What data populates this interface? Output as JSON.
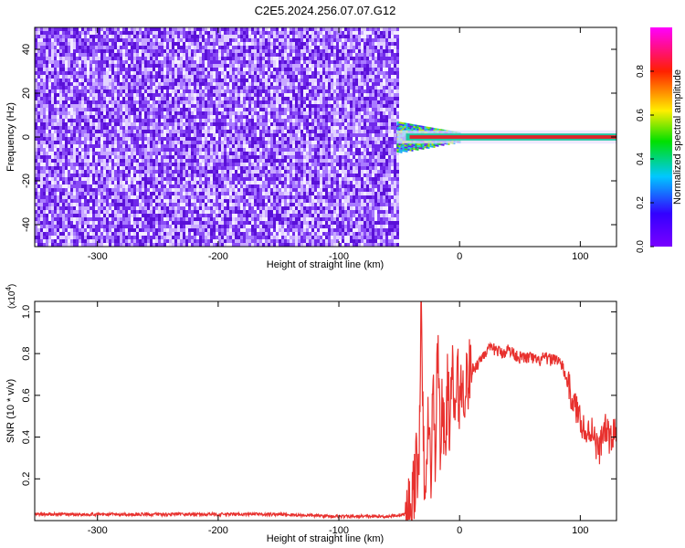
{
  "title": "C2E5.2024.256.07.07.G12",
  "colors": {
    "spectrogram_noise": "#6a1be8",
    "spectrogram_band": "#e0242a",
    "snr_line": "#e8312e",
    "axes": "#000000"
  },
  "chart_data": [
    {
      "type": "heatmap",
      "title": "C2E5.2024.256.07.07.G12",
      "xlabel": "Height of straight line (km)",
      "ylabel": "Frequency (Hz)",
      "xlim": [
        -352,
        130
      ],
      "ylim": [
        -50,
        50
      ],
      "xticks": [
        -300,
        -200,
        -100,
        0,
        100
      ],
      "yticks": [
        -40,
        -20,
        0,
        20,
        40
      ],
      "colorbar": {
        "label": "Normalized spectral amplitude",
        "range": [
          0,
          1
        ],
        "ticks": [
          "0.0",
          "0.2",
          "0.4",
          "0.6",
          "0.8"
        ],
        "colormap": "violet-blue-cyan-green-yellow-red-magenta"
      },
      "regions": [
        {
          "name": "noise",
          "x_range": [
            -352,
            -52
          ],
          "freq_range": [
            -50,
            50
          ],
          "amplitude": 0.1
        },
        {
          "name": "onset",
          "x_range": [
            -52,
            0
          ],
          "freq_range": [
            -6,
            6
          ],
          "amplitude": 0.6
        },
        {
          "name": "carrier",
          "x_range": [
            0,
            130
          ],
          "freq_range": [
            -1,
            1
          ],
          "amplitude": 1.0
        }
      ]
    },
    {
      "type": "line",
      "xlabel": "Height of straight line (km)",
      "ylabel": "SNR (10 * v/v)",
      "y_multiplier": "(x10^4)",
      "y_multiplier_base": "(x10",
      "y_multiplier_exp": "4",
      "y_multiplier_close": ")",
      "xlim": [
        -352,
        130
      ],
      "ylim": [
        0,
        1.05
      ],
      "xticks": [
        -300,
        -200,
        -100,
        0,
        100
      ],
      "yticks": [
        0.2,
        0.4,
        0.6,
        0.8,
        1.0
      ],
      "yticklabels": [
        "0.2",
        "0.4",
        "0.6",
        "0.8",
        "1.0"
      ],
      "series": [
        {
          "x": [
            -352,
            -300,
            -250,
            -200,
            -150,
            -100,
            -60,
            -45,
            -40,
            -36,
            -34,
            -32,
            -30,
            -28,
            -26,
            -24,
            -22,
            -20,
            -18,
            -16,
            -14,
            -12,
            -10,
            -8,
            -6,
            -4,
            -2,
            0,
            5,
            10,
            15,
            20,
            25,
            30,
            35,
            40,
            45,
            50,
            55,
            60,
            65,
            70,
            75,
            80,
            85,
            90,
            95,
            100,
            105,
            110,
            115,
            120,
            125,
            130
          ],
          "y": [
            0.03,
            0.03,
            0.03,
            0.03,
            0.03,
            0.02,
            0.02,
            0.03,
            0.08,
            0.25,
            0.18,
            1.02,
            0.35,
            0.05,
            0.55,
            0.2,
            0.62,
            0.3,
            0.88,
            0.4,
            0.55,
            0.3,
            0.65,
            0.45,
            0.7,
            0.5,
            0.68,
            0.6,
            0.66,
            0.72,
            0.75,
            0.8,
            0.82,
            0.82,
            0.8,
            0.82,
            0.8,
            0.78,
            0.78,
            0.78,
            0.76,
            0.78,
            0.77,
            0.78,
            0.74,
            0.65,
            0.55,
            0.5,
            0.4,
            0.45,
            0.32,
            0.45,
            0.38,
            0.45
          ]
        }
      ]
    }
  ]
}
